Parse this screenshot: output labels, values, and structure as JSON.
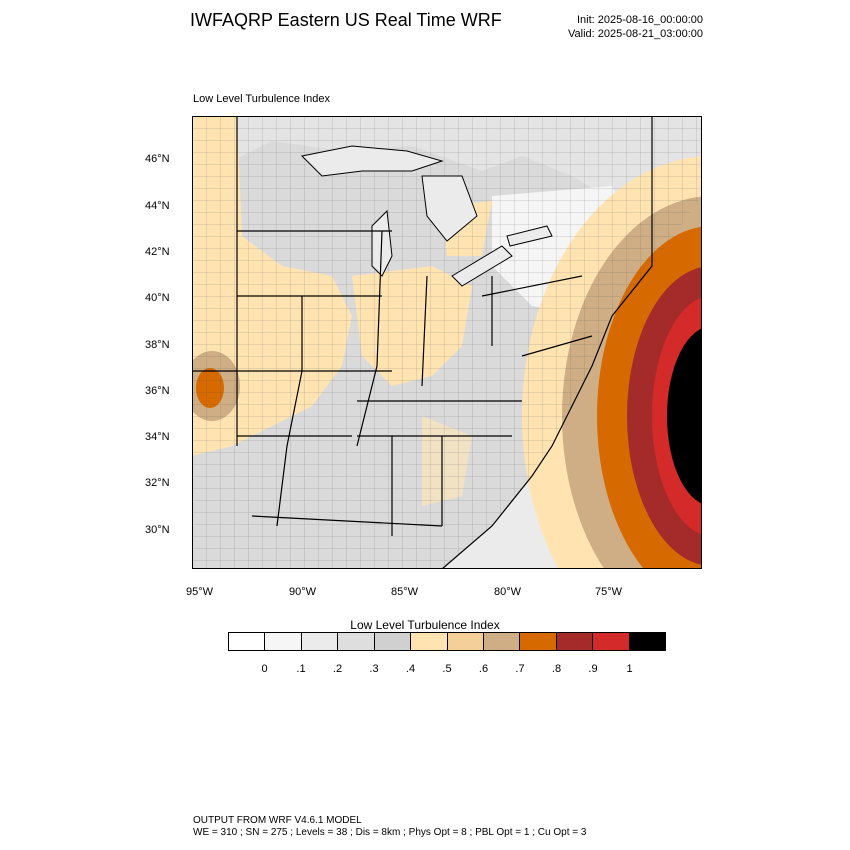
{
  "header": {
    "title": "IWFAQRP Eastern US Real Time WRF",
    "init": "Init: 2025-08-16_00:00:00",
    "valid": "Valid: 2025-08-21_03:00:00"
  },
  "map": {
    "field_label": "Low Level Turbulence Index",
    "lat_ticks": [
      "46°N",
      "44°N",
      "42°N",
      "40°N",
      "38°N",
      "36°N",
      "34°N",
      "32°N",
      "30°N"
    ],
    "lon_ticks": [
      "95°W",
      "90°W",
      "85°W",
      "80°W",
      "75°W"
    ]
  },
  "colorbar": {
    "title": "Low Level Turbulence Index",
    "labels": [
      "0",
      ".1",
      ".2",
      ".3",
      ".4",
      ".5",
      ".6",
      ".7",
      ".8",
      ".9",
      "1"
    ],
    "colors": [
      "#ffffff",
      "#f6f6f6",
      "#ebebeb",
      "#dedede",
      "#d0d0d0",
      "#ffe4b2",
      "#f5cf9a",
      "#cfae85",
      "#d66a00",
      "#a52a2a",
      "#d42a2a",
      "#000000"
    ]
  },
  "footer": {
    "line1": "OUTPUT FROM WRF V4.6.1 MODEL",
    "line2": "WE = 310 ; SN = 275 ; Levels = 38 ; Dis = 8km ; Phys Opt = 8 ; PBL Opt = 1 ; Cu Opt = 3"
  }
}
